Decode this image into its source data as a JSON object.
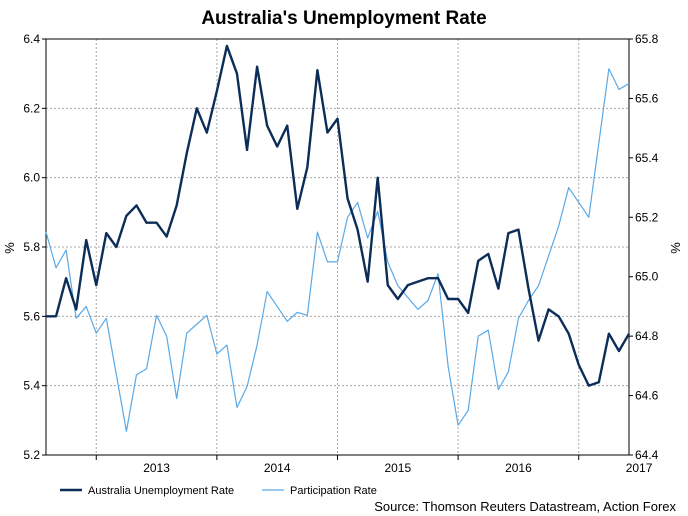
{
  "chart_data": {
    "type": "line",
    "title": "Australia's Unemployment Rate",
    "source": "Source: Thomson Reuters Datastream, Action Forex",
    "ylabel_left": "%",
    "ylabel_right": "%",
    "x_ticks": [
      "2013",
      "2014",
      "2015",
      "2016",
      "2017"
    ],
    "y_left": {
      "lim": [
        5.2,
        6.4
      ],
      "ticks": [
        "5.2",
        "5.4",
        "5.6",
        "5.8",
        "6.0",
        "6.2",
        "6.4"
      ]
    },
    "y_right": {
      "lim": [
        64.4,
        65.8
      ],
      "ticks": [
        "64.4",
        "64.6",
        "64.8",
        "65.0",
        "65.2",
        "65.4",
        "65.6",
        "65.8"
      ]
    },
    "grid": true,
    "legend_position": "bottom-left",
    "colors": {
      "unemployment": "#0c2d57",
      "participation": "#5aa9e6",
      "grid": "#aaaaaa"
    },
    "series": [
      {
        "name": "Australia Unemployment Rate",
        "axis": "left",
        "start": "2012-08",
        "values": [
          5.6,
          5.6,
          5.71,
          5.62,
          5.82,
          5.69,
          5.84,
          5.8,
          5.89,
          5.92,
          5.87,
          5.87,
          5.83,
          5.92,
          6.07,
          6.2,
          6.13,
          6.25,
          6.38,
          6.3,
          6.08,
          6.32,
          6.15,
          6.09,
          6.15,
          5.91,
          6.03,
          6.31,
          6.13,
          6.17,
          5.94,
          5.85,
          5.7,
          6.0,
          5.69,
          5.65,
          5.69,
          5.7,
          5.71,
          5.71,
          5.65,
          5.65,
          5.61,
          5.76,
          5.78,
          5.68,
          5.84,
          5.85,
          5.68,
          5.53,
          5.62,
          5.6,
          5.55,
          5.46,
          5.4,
          5.41,
          5.55,
          5.5,
          5.55
        ]
      },
      {
        "name": "Participation Rate",
        "axis": "right",
        "start": "2012-08",
        "values": [
          65.15,
          65.03,
          65.09,
          64.86,
          64.9,
          64.81,
          64.86,
          64.67,
          64.48,
          64.67,
          64.69,
          64.87,
          64.8,
          64.59,
          64.81,
          64.84,
          64.87,
          64.74,
          64.77,
          64.56,
          64.63,
          64.77,
          64.95,
          64.9,
          64.85,
          64.88,
          64.87,
          65.15,
          65.05,
          65.05,
          65.2,
          65.25,
          65.13,
          65.22,
          65.05,
          64.97,
          64.93,
          64.89,
          64.92,
          65.01,
          64.7,
          64.5,
          64.55,
          64.8,
          64.82,
          64.62,
          64.68,
          64.86,
          64.92,
          64.97,
          65.07,
          65.17,
          65.3,
          65.25,
          65.2,
          65.45,
          65.7,
          65.63,
          65.65
        ]
      }
    ]
  }
}
